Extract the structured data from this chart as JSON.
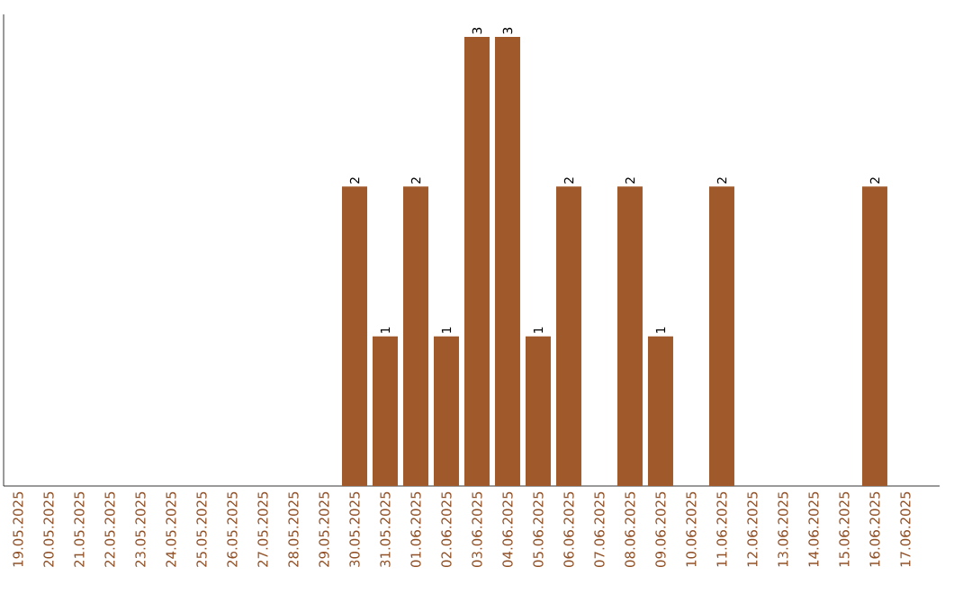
{
  "chart_data": {
    "type": "bar",
    "categories": [
      "19.05.2025",
      "20.05.2025",
      "21.05.2025",
      "22.05.2025",
      "23.05.2025",
      "24.05.2025",
      "25.05.2025",
      "26.05.2025",
      "27.05.2025",
      "28.05.2025",
      "29.05.2025",
      "30.05.2025",
      "31.05.2025",
      "01.06.2025",
      "02.06.2025",
      "03.06.2025",
      "04.06.2025",
      "05.06.2025",
      "06.06.2025",
      "07.06.2025",
      "08.06.2025",
      "09.06.2025",
      "10.06.2025",
      "11.06.2025",
      "12.06.2025",
      "13.06.2025",
      "14.06.2025",
      "15.06.2025",
      "16.06.2025",
      "17.06.2025"
    ],
    "values": [
      0,
      0,
      0,
      0,
      0,
      0,
      0,
      0,
      0,
      0,
      0,
      2,
      1,
      2,
      1,
      3,
      3,
      1,
      2,
      0,
      2,
      1,
      0,
      2,
      0,
      0,
      0,
      0,
      2,
      0
    ],
    "value_labels": [
      null,
      null,
      null,
      null,
      null,
      null,
      null,
      null,
      null,
      null,
      null,
      "2",
      "1",
      "2",
      "1",
      "3",
      "3",
      "1",
      "2",
      null,
      "2",
      "1",
      null,
      "2",
      null,
      null,
      null,
      null,
      "2",
      null
    ],
    "color": "#a0592a",
    "relative": false,
    "tick_labels": "x"
  }
}
